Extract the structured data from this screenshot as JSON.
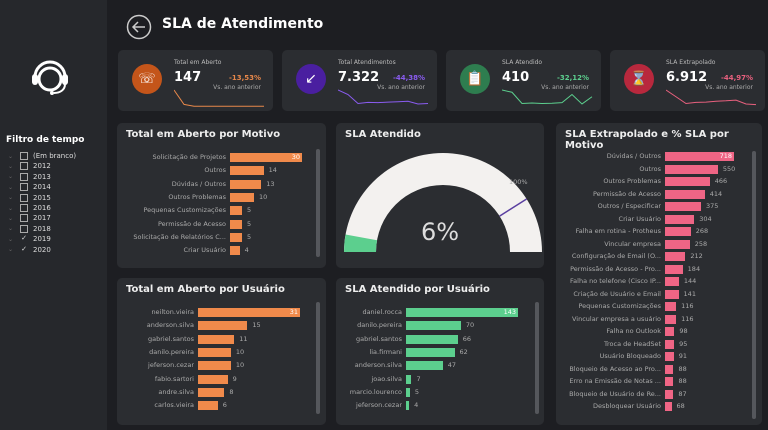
{
  "header": {
    "title": "SLA de Atendimento",
    "back_icon": "back-arrow-icon"
  },
  "sidebar": {
    "logo_icon": "headset-support-icon",
    "filter_title": "Filtro de tempo",
    "filters": [
      {
        "label": "(Em branco)",
        "checked": false
      },
      {
        "label": "2012",
        "checked": false
      },
      {
        "label": "2013",
        "checked": false
      },
      {
        "label": "2014",
        "checked": false
      },
      {
        "label": "2015",
        "checked": false
      },
      {
        "label": "2016",
        "checked": false
      },
      {
        "label": "2017",
        "checked": false
      },
      {
        "label": "2018",
        "checked": false
      },
      {
        "label": "2019",
        "checked": true
      },
      {
        "label": "2020",
        "checked": true
      }
    ]
  },
  "kpis": [
    {
      "title": "Total em Aberto",
      "value": "147",
      "change": "-13,53%",
      "subtitle": "Vs. ano anterior",
      "color": "#e8884a",
      "icon_bg": "#c4551a",
      "icon": "phone-clock-icon",
      "trend": [
        10,
        2,
        1,
        1,
        1,
        1,
        1,
        1,
        1,
        1
      ]
    },
    {
      "title": "Total Atendimentos",
      "value": "7.322",
      "change": "-44,38%",
      "subtitle": "Vs. ano anterior",
      "color": "#8a5cf0",
      "icon_bg": "#4a1fa0",
      "icon": "incoming-call-icon",
      "trend": [
        8,
        6,
        2,
        2.5,
        2.4,
        2.6,
        2.8,
        3,
        1.8,
        2
      ]
    },
    {
      "title": "SLA Atendido",
      "value": "410",
      "change": "-32,12%",
      "subtitle": "Vs. ano anterior",
      "color": "#5ccf8e",
      "icon_bg": "#2e7d4f",
      "icon": "clipboard-check-icon",
      "trend": [
        8,
        7,
        2,
        2.2,
        2,
        2.1,
        2.4,
        6,
        1.8,
        5
      ]
    },
    {
      "title": "SLA Extrapolado",
      "value": "6.912",
      "change": "-44,97%",
      "subtitle": "Vs. ano anterior",
      "color": "#e8607e",
      "icon_bg": "#b8283d",
      "icon": "hourglass-icon",
      "trend": [
        8,
        5,
        2,
        2.5,
        2.6,
        3,
        3.2,
        3.5,
        1.8,
        1.5
      ]
    }
  ],
  "panels": {
    "motivo": {
      "title": "Total em Aberto por Motivo",
      "color": "#f08a4b",
      "labels": [
        "Solicitação de Projetos",
        "Outros",
        "Dúvidas / Outros",
        "Outros Problemas",
        "Pequenas Customizações",
        "Permissão de Acesso",
        "Solicitação de Relatórios C...",
        "Criar Usuário"
      ],
      "values": [
        30,
        14,
        13,
        10,
        5,
        5,
        5,
        4
      ]
    },
    "gauge": {
      "title": "SLA Atendido",
      "value_label": "6%",
      "value": 6,
      "target_label": "100%",
      "fill_color": "#5ccf8e"
    },
    "extrap": {
      "title": "SLA Extrapolado e % SLA por Motivo",
      "color": "#ef6585",
      "labels": [
        "Dúvidas / Outros",
        "Outros",
        "Outros Problemas",
        "Permissão de Acesso",
        "Outros / Especificar",
        "Criar Usuário",
        "Falha em rotina - Protheus",
        "Vincular empresa",
        "Configuração de Email (O...",
        "Permissão de Acesso - Pro...",
        "Falha no telefone (Cisco IP...",
        "Criação de Usuário e Email",
        "Pequenas Customizações",
        "Vincular empresa a usuário",
        "Falha no Outlook",
        "Troca de HeadSet",
        "Usuário Bloqueado",
        "Bloqueio de Acesso ao Pro...",
        "Erro na Emissão de Notas ...",
        "Bloqueio de Usuário de Re...",
        "Desbloquear Usuário"
      ],
      "values": [
        718,
        550,
        466,
        414,
        375,
        304,
        268,
        258,
        212,
        184,
        144,
        141,
        116,
        116,
        98,
        95,
        91,
        88,
        88,
        87,
        68
      ]
    },
    "usuario": {
      "title": "Total em Aberto por Usuário",
      "color": "#f08a4b",
      "labels": [
        "neilton.vieira",
        "anderson.silva",
        "gabriel.santos",
        "danilo.pereira",
        "jeferson.cezar",
        "fabio.sartori",
        "andre.silva",
        "carlos.vieira"
      ],
      "values": [
        31,
        15,
        11,
        10,
        10,
        9,
        8,
        6
      ]
    },
    "sla_usuario": {
      "title": "SLA Atendido por Usuário",
      "color": "#5ccf8e",
      "labels": [
        "daniel.rocca",
        "danilo.pereira",
        "gabriel.santos",
        "lia.firmani",
        "anderson.silva",
        "joao.silva",
        "marcio.lourenco",
        "jeferson.cezar"
      ],
      "values": [
        143,
        70,
        66,
        62,
        47,
        7,
        5,
        4
      ]
    }
  }
}
